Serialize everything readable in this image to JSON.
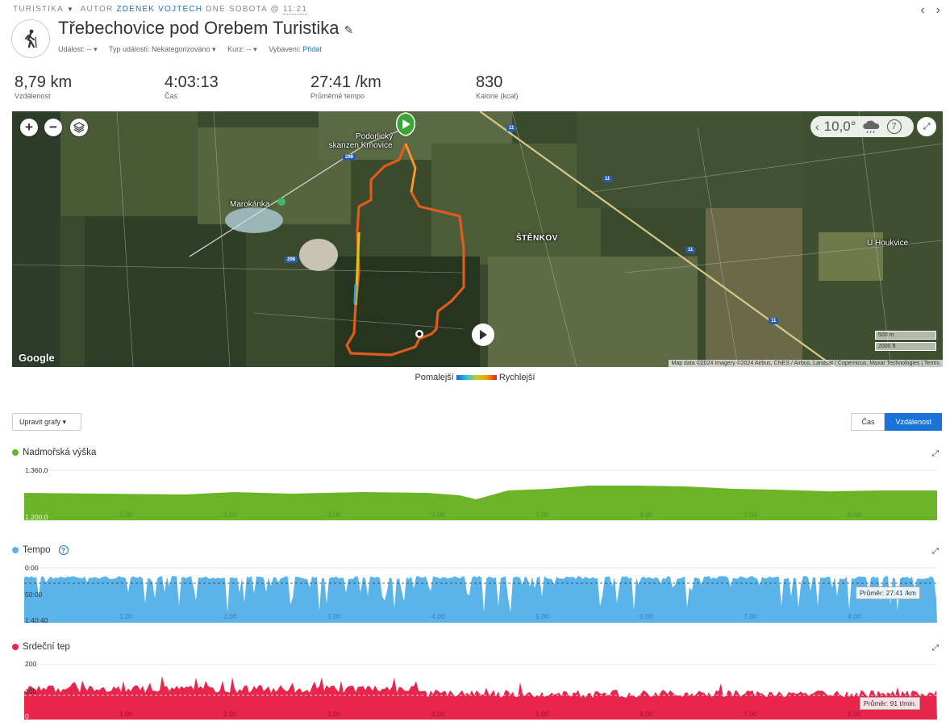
{
  "breadcrumb": {
    "activity_type": "TURISTIKA",
    "author_prefix": "AUTOR",
    "author": "ZDENEK VOJTECH",
    "date_prefix": "DNE SOBOTA @",
    "time": "11:21"
  },
  "nav": {
    "prev": "‹",
    "next": "›"
  },
  "title": "Třebechovice pod Orebem Turistika",
  "meta": {
    "event_label": "Událost:",
    "event_value": "--",
    "event_type_label": "Typ události:",
    "event_type_value": "Nekategorizováno",
    "course_label": "Kurz:",
    "course_value": "--",
    "gear_label": "Vybavení:",
    "gear_link": "Přidat"
  },
  "stats": [
    {
      "value": "8,79 km",
      "label": "Vzdálenost"
    },
    {
      "value": "4:03:13",
      "label": "Čas"
    },
    {
      "value": "27:41 /km",
      "label": "Průměrné tempo"
    },
    {
      "value": "830",
      "label": "Kalorie (kcal)"
    }
  ],
  "map": {
    "zoom_in": "+",
    "zoom_out": "−",
    "weather_temp": "10,0°",
    "wind": "7",
    "labels": {
      "start_line1": "Podorlický",
      "start_line2": "skanzen Krňovice",
      "lake": "Marokánka",
      "village": "ŠTĚNKOV",
      "east": "U Houkvice"
    },
    "roads": [
      "298",
      "298",
      "11",
      "11",
      "11",
      "11"
    ],
    "scale_m": "500 m",
    "scale_ft": "2000 ft",
    "google": "Google",
    "attribution": "Map data ©2024 Imagery ©2024 Airbus, CNES / Airbus, Landsat / Copernicus, Maxar Technologies | Terms"
  },
  "legend": {
    "slow": "Pomalejší",
    "fast": "Rychlejší"
  },
  "controls": {
    "edit_charts": "Upravit grafy ▾",
    "toggle_time": "Čas",
    "toggle_distance": "Vzdálenost"
  },
  "colors": {
    "elevation": "#6cb427",
    "pace": "#5ab4ea",
    "heart": "#e8264c",
    "accent": "#1a73d8"
  },
  "charts": {
    "elevation": {
      "title": "Nadmořská výška",
      "y_top": "1.360,0",
      "y_bottom": "1.200,0",
      "x_ticks": [
        "1,00",
        "2,00",
        "3,00",
        "4,00",
        "5,00",
        "6,00",
        "7,00",
        "8,00"
      ]
    },
    "pace": {
      "title": "Tempo",
      "y_top": "0:00",
      "y_mid": "50:00",
      "y_bottom": "1:40:40",
      "x_ticks": [
        "1,00",
        "2,00",
        "3,00",
        "4,00",
        "5,00",
        "6,00",
        "7,00",
        "8,00"
      ],
      "avg_label": "Průměr: 27:41 /km"
    },
    "heart": {
      "title": "Srdeční tep",
      "y_top": "200",
      "y_mid": "100",
      "y_bottom": "0",
      "x_ticks": [
        "1,00",
        "2,00",
        "3,00",
        "4,00",
        "5,00",
        "6,00",
        "7,00",
        "8,00"
      ],
      "avg_label": "Průměr: 91 t/min."
    }
  }
}
